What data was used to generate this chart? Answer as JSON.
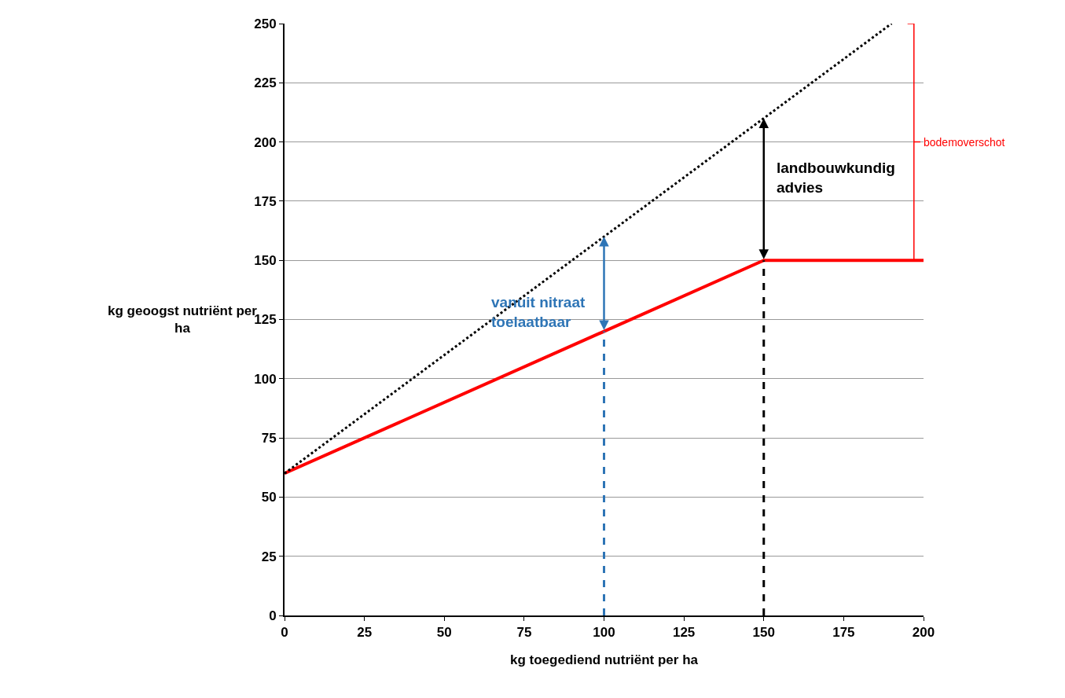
{
  "chart_data": {
    "type": "line",
    "xlabel": "kg toegediend nutriënt per ha",
    "ylabel": "kg geoogst nutriënt per\nha",
    "series": [
      {
        "x": [
          0,
          150,
          200
        ],
        "values": [
          60,
          150,
          150
        ],
        "color": "#ff0000",
        "line_style": "solid"
      },
      {
        "x": [
          0,
          190
        ],
        "values": [
          60,
          250
        ],
        "color": "#000000",
        "line_style": "dotted"
      },
      {
        "x": [
          100,
          100
        ],
        "values": [
          0,
          120
        ],
        "color": "#2e75b6",
        "line_style": "dashed"
      },
      {
        "x": [
          150,
          150
        ],
        "values": [
          0,
          150
        ],
        "color": "#000000",
        "line_style": "dashed"
      }
    ],
    "annotations": [
      "vanuit nitraat\ntoelaatbaar",
      "landbouwkundig\nadvies",
      "bodemoverschot"
    ],
    "xlim": [
      0,
      200
    ],
    "xticks": [
      0,
      25,
      50,
      75,
      100,
      125,
      150,
      175,
      200
    ],
    "ylim": [
      0,
      250
    ],
    "yticks": [
      0,
      25,
      50,
      75,
      100,
      125,
      150,
      175,
      200,
      225,
      250
    ],
    "grid": "y"
  }
}
